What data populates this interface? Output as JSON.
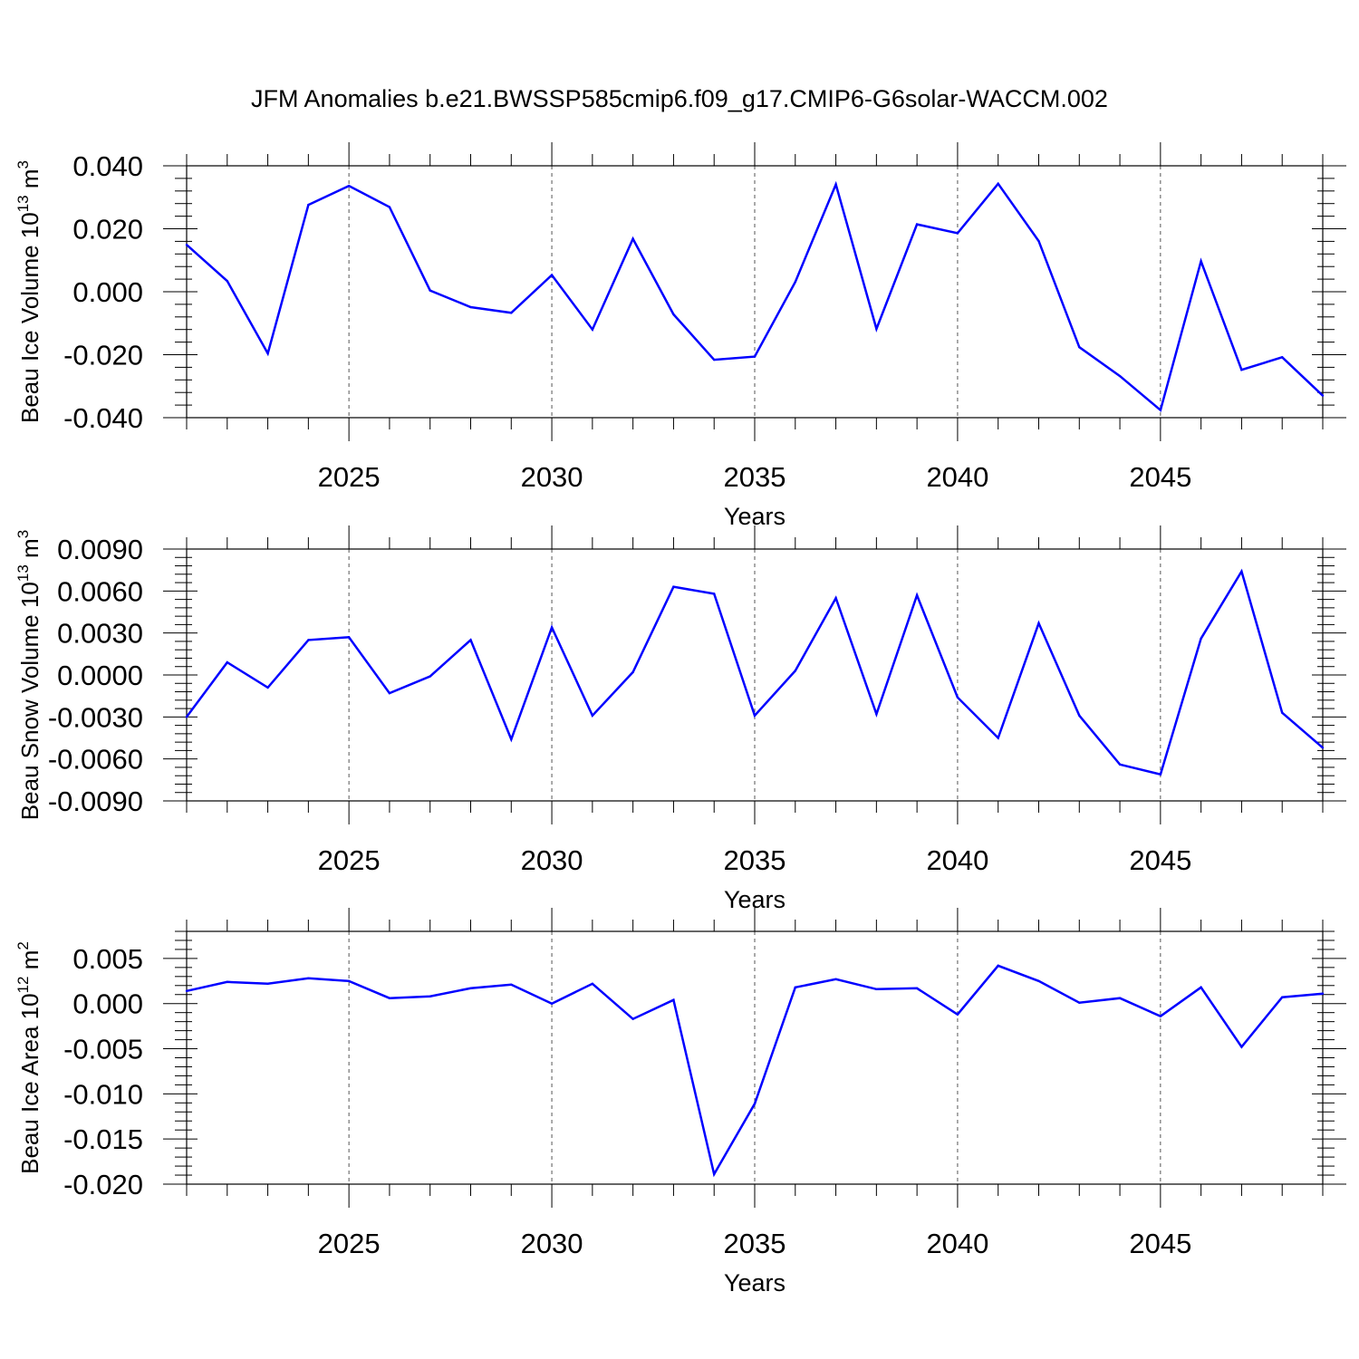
{
  "title": "JFM Anomalies b.e21.BWSSP585cmip6.f09_g17.CMIP6-G6solar-WACCM.002",
  "line_color": "#0000ff",
  "grid_color": "#555555",
  "chart_data": [
    {
      "type": "line",
      "ylabel": "Beau Ice Volume 10",
      "ylabel_exp": "13",
      "ylabel_unit": "m",
      "ylabel_unit_exp": "3",
      "xlabel": "Years",
      "xlim": [
        2021,
        2049
      ],
      "ylim": [
        -0.04,
        0.04
      ],
      "yticks": [
        -0.04,
        -0.02,
        0.0,
        0.02,
        0.04
      ],
      "ytick_labels": [
        "-0.040",
        "-0.020",
        "0.000",
        "0.020",
        "0.040"
      ],
      "xticks": [
        2025,
        2030,
        2035,
        2040,
        2045
      ],
      "xtick_labels": [
        "2025",
        "2030",
        "2035",
        "2040",
        "2045"
      ],
      "grid": "vertical dashed at major x ticks",
      "series": [
        {
          "x": [
            2021,
            2022,
            2023,
            2024,
            2025,
            2026,
            2027,
            2028,
            2029,
            2030,
            2031,
            2032,
            2033,
            2034,
            2035,
            2036,
            2037,
            2038,
            2039,
            2040,
            2041,
            2042,
            2043,
            2044,
            2045,
            2046,
            2047,
            2048,
            2049
          ],
          "y": [
            0.0149,
            0.0034,
            -0.0196,
            0.0276,
            0.0336,
            0.0269,
            0.0004,
            -0.0049,
            -0.0067,
            0.0053,
            -0.012,
            0.0168,
            -0.0072,
            -0.0216,
            -0.0206,
            0.0031,
            0.0341,
            -0.0118,
            0.0214,
            0.0186,
            0.0343,
            0.0161,
            -0.0176,
            -0.0268,
            -0.0376,
            0.0097,
            -0.0248,
            -0.0208,
            -0.033
          ]
        }
      ]
    },
    {
      "type": "line",
      "ylabel": "Beau Snow Volume 10",
      "ylabel_exp": "13",
      "ylabel_unit": "m",
      "ylabel_unit_exp": "3",
      "xlabel": "Years",
      "xlim": [
        2021,
        2049
      ],
      "ylim": [
        -0.009,
        0.009
      ],
      "yticks": [
        -0.009,
        -0.006,
        -0.003,
        0.0,
        0.003,
        0.006,
        0.009
      ],
      "ytick_labels": [
        "-0.0090",
        "-0.0060",
        "-0.0030",
        "0.0000",
        "0.0030",
        "0.0060",
        "0.0090"
      ],
      "xticks": [
        2025,
        2030,
        2035,
        2040,
        2045
      ],
      "xtick_labels": [
        "2025",
        "2030",
        "2035",
        "2040",
        "2045"
      ],
      "grid": "vertical dashed at major x ticks",
      "series": [
        {
          "x": [
            2021,
            2022,
            2023,
            2024,
            2025,
            2026,
            2027,
            2028,
            2029,
            2030,
            2031,
            2032,
            2033,
            2034,
            2035,
            2036,
            2037,
            2038,
            2039,
            2040,
            2041,
            2042,
            2043,
            2044,
            2045,
            2046,
            2047,
            2048,
            2049
          ],
          "y": [
            -0.003,
            0.0009,
            -0.0009,
            0.0025,
            0.0027,
            -0.0013,
            -0.0001,
            0.0025,
            -0.0046,
            0.0034,
            -0.0029,
            0.0002,
            0.0063,
            0.0058,
            -0.0029,
            0.0003,
            0.0055,
            -0.0028,
            0.0057,
            -0.0016,
            -0.0045,
            0.0037,
            -0.0029,
            -0.0064,
            -0.0071,
            0.0026,
            0.0074,
            -0.0027,
            -0.0052
          ]
        }
      ]
    },
    {
      "type": "line",
      "ylabel": "Beau Ice Area 10",
      "ylabel_exp": "12",
      "ylabel_unit": "m",
      "ylabel_unit_exp": "2",
      "xlabel": "Years",
      "xlim": [
        2021,
        2049
      ],
      "ylim": [
        -0.02,
        0.008
      ],
      "yticks": [
        -0.02,
        -0.015,
        -0.01,
        -0.005,
        0.0,
        0.005
      ],
      "ytick_labels": [
        "-0.020",
        "-0.015",
        "-0.010",
        "-0.005",
        "0.000",
        "0.005"
      ],
      "xticks": [
        2025,
        2030,
        2035,
        2040,
        2045
      ],
      "xtick_labels": [
        "2025",
        "2030",
        "2035",
        "2040",
        "2045"
      ],
      "grid": "vertical dashed at major x ticks",
      "series": [
        {
          "x": [
            2021,
            2022,
            2023,
            2024,
            2025,
            2026,
            2027,
            2028,
            2029,
            2030,
            2031,
            2032,
            2033,
            2034,
            2035,
            2036,
            2037,
            2038,
            2039,
            2040,
            2041,
            2042,
            2043,
            2044,
            2045,
            2046,
            2047,
            2048,
            2049
          ],
          "y": [
            0.0014,
            0.0024,
            0.0022,
            0.0028,
            0.0025,
            0.0006,
            0.0008,
            0.0017,
            0.0021,
            0.0,
            0.0022,
            -0.0017,
            0.0004,
            -0.0189,
            -0.0111,
            0.0018,
            0.0027,
            0.0016,
            0.0017,
            -0.0012,
            0.0042,
            0.0025,
            0.0001,
            0.0006,
            -0.0014,
            0.0018,
            -0.0048,
            0.0007,
            0.0011
          ]
        }
      ]
    }
  ]
}
